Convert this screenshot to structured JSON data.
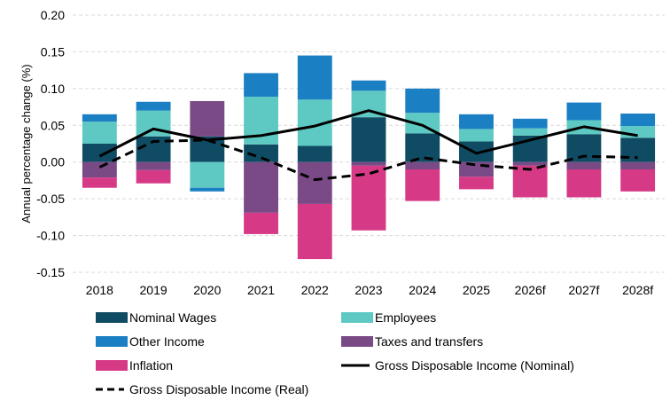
{
  "chart_data": {
    "type": "bar",
    "stacked": true,
    "title": "",
    "xlabel": "",
    "ylabel": "Annual percentage change (%)",
    "ylim": [
      -0.15,
      0.2
    ],
    "yticks": [
      0.2,
      0.15,
      0.1,
      0.05,
      0.0,
      -0.05,
      -0.1,
      -0.15
    ],
    "ytick_labels": [
      "0.20",
      "0.15",
      "0.10",
      "0.05",
      "0.00",
      "-0.05",
      "-0.10",
      "-0.15"
    ],
    "grid": true,
    "legend_position": "bottom",
    "categories": [
      "2018",
      "2019",
      "2020",
      "2021",
      "2022",
      "2023",
      "2024",
      "2025",
      "2026f",
      "2027f",
      "2028f"
    ],
    "series": [
      {
        "name": "Nominal Wages",
        "kind": "bar",
        "color": "#0f4c63",
        "values": [
          0.025,
          0.035,
          0.035,
          0.024,
          0.022,
          0.061,
          0.039,
          0.028,
          0.036,
          0.038,
          0.033
        ]
      },
      {
        "name": "Employees",
        "kind": "bar",
        "color": "#5ec9c2",
        "values": [
          0.03,
          0.035,
          -0.035,
          0.065,
          0.063,
          0.036,
          0.028,
          0.017,
          0.01,
          0.019,
          0.016
        ]
      },
      {
        "name": "Other Income",
        "kind": "bar",
        "color": "#1b7fc4",
        "values": [
          0.01,
          0.012,
          -0.005,
          0.032,
          0.06,
          0.014,
          0.033,
          0.02,
          0.013,
          0.024,
          0.017
        ]
      },
      {
        "name": "Taxes and transfers",
        "kind": "bar",
        "color": "#7a4a86",
        "values": [
          -0.021,
          -0.011,
          0.048,
          -0.069,
          -0.057,
          -0.005,
          -0.01,
          -0.02,
          -0.005,
          -0.01,
          -0.01
        ]
      },
      {
        "name": "Inflation",
        "kind": "bar",
        "color": "#d63a86",
        "values": [
          -0.014,
          -0.018,
          0.0,
          -0.029,
          -0.075,
          -0.088,
          -0.043,
          -0.017,
          -0.043,
          -0.038,
          -0.03
        ]
      },
      {
        "name": "Gross Disposable Income (Nominal)",
        "kind": "line",
        "style": "solid",
        "color": "#000000",
        "values": [
          0.008,
          0.045,
          0.03,
          0.036,
          0.049,
          0.07,
          0.05,
          0.012,
          0.03,
          0.048,
          0.036
        ]
      },
      {
        "name": "Gross Disposable Income (Real)",
        "kind": "line",
        "style": "dashed",
        "color": "#000000",
        "values": [
          -0.007,
          0.028,
          0.03,
          0.006,
          -0.024,
          -0.016,
          0.006,
          -0.004,
          -0.01,
          0.008,
          0.006
        ]
      }
    ]
  }
}
